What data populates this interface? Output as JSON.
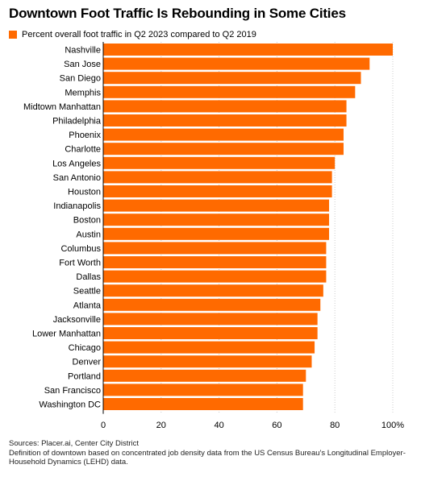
{
  "chart_data": {
    "type": "bar",
    "orientation": "horizontal",
    "title": "Downtown Foot Traffic Is Rebounding in Some Cities",
    "legend": "Percent overall foot traffic in Q2 2023 compared to Q2 2019",
    "bar_color": "#ff6a00",
    "categories": [
      "Nashville",
      "San Jose",
      "San Diego",
      "Memphis",
      "Midtown Manhattan",
      "Philadelphia",
      "Phoenix",
      "Charlotte",
      "Los Angeles",
      "San Antonio",
      "Houston",
      "Indianapolis",
      "Boston",
      "Austin",
      "Columbus",
      "Fort Worth",
      "Dallas",
      "Seattle",
      "Atlanta",
      "Jacksonville",
      "Lower Manhattan",
      "Chicago",
      "Denver",
      "Portland",
      "San Francisco",
      "Washington DC"
    ],
    "values": [
      100,
      92,
      89,
      87,
      84,
      84,
      83,
      83,
      80,
      79,
      79,
      78,
      78,
      78,
      77,
      77,
      77,
      76,
      75,
      74,
      74,
      73,
      72,
      70,
      69,
      69
    ],
    "xlim": [
      0,
      100
    ],
    "xticks": [
      "0",
      "20",
      "40",
      "60",
      "80",
      "100%"
    ],
    "grid": true
  },
  "footer": {
    "sources": "Sources: Placer.ai, Center City District",
    "note": "Definition of downtown based on concentrated job density data from the US Census Bureau's Longitudinal Employer-Household Dynamics (LEHD) data."
  }
}
